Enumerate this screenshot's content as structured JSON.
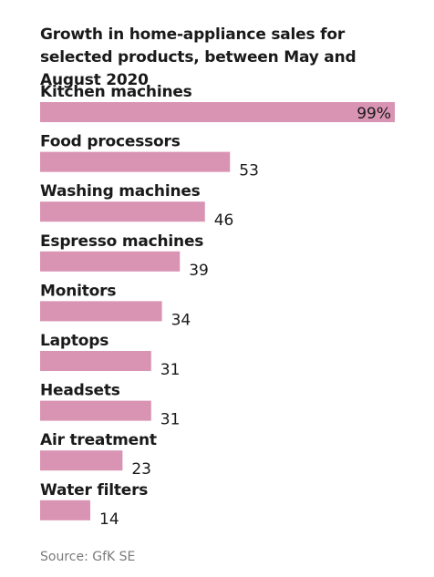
{
  "chart_data": {
    "type": "bar",
    "orientation": "horizontal",
    "title": "Growth in home-appliance sales for selected products, between May and August 2020",
    "categories": [
      "Kitchen machines",
      "Food processors",
      "Washing machines",
      "Espresso machines",
      "Monitors",
      "Laptops",
      "Headsets",
      "Air treatment",
      "Water filters"
    ],
    "values": [
      99,
      53,
      46,
      39,
      34,
      31,
      31,
      23,
      14
    ],
    "value_labels": [
      "99%",
      "53",
      "46",
      "39",
      "34",
      "31",
      "31",
      "23",
      "14"
    ],
    "xlim": [
      0,
      99
    ],
    "unit": "%",
    "grid": false,
    "legend": "none",
    "bar_color": "#d993b3",
    "source": "Source: GfK SE"
  }
}
